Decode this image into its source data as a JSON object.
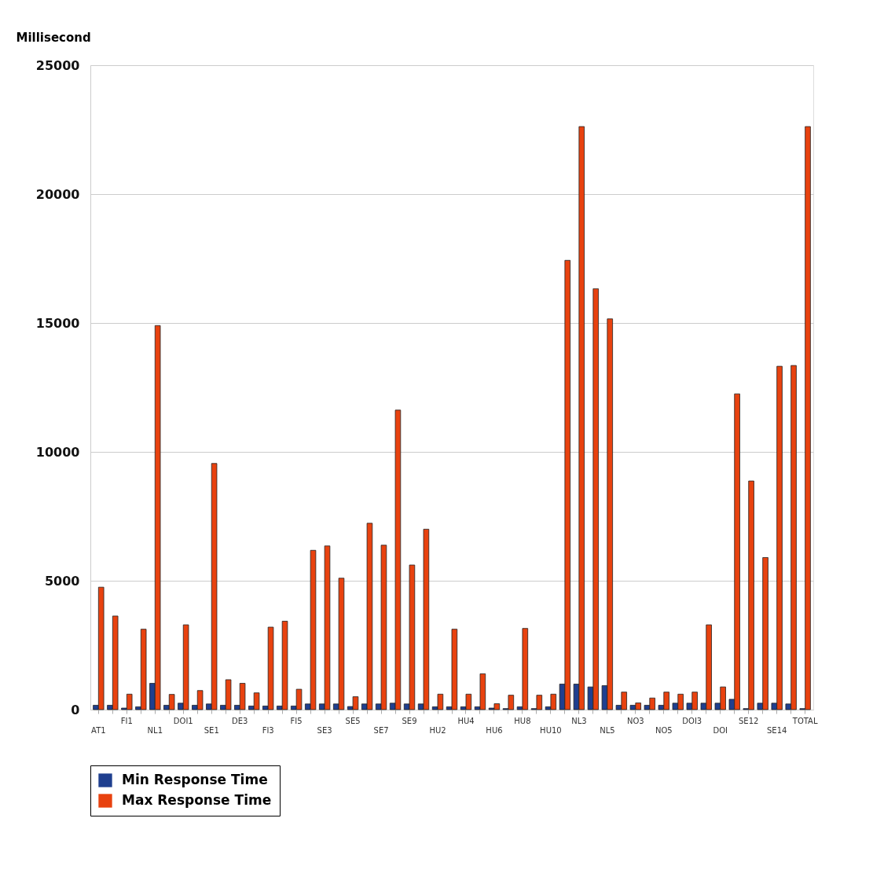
{
  "chart_data": {
    "type": "bar",
    "ylabel": "Millisecond",
    "categories": [
      "AT1",
      null,
      "FI1",
      null,
      "NL1",
      null,
      "DOI1",
      null,
      "SE1",
      null,
      "DE3",
      null,
      "FI3",
      null,
      "FI5",
      null,
      "SE3",
      null,
      "SE5",
      null,
      "SE7",
      null,
      "SE9",
      null,
      "HU2",
      null,
      "HU4",
      null,
      "HU6",
      null,
      "HU8",
      null,
      "HU10",
      null,
      "NL3",
      null,
      "NL5",
      null,
      "NO3",
      null,
      "NO5",
      null,
      "DOI3",
      null,
      "DOI",
      null,
      "SE12",
      null,
      "SE14",
      null,
      "TOTAL"
    ],
    "series": [
      {
        "name": "Min Response Time",
        "color": "#1f3f8f",
        "values": [
          170,
          170,
          60,
          110,
          1020,
          170,
          250,
          170,
          220,
          170,
          170,
          140,
          140,
          140,
          140,
          220,
          220,
          220,
          120,
          220,
          220,
          250,
          220,
          220,
          110,
          110,
          110,
          110,
          60,
          40,
          110,
          40,
          110,
          990,
          990,
          880,
          930,
          170,
          170,
          170,
          170,
          250,
          250,
          250,
          250,
          400,
          40,
          250,
          250,
          220,
          40
        ]
      },
      {
        "name": "Max Response Time",
        "color": "#e8420f",
        "values": [
          4750,
          3630,
          600,
          3120,
          14900,
          590,
          3290,
          740,
          9550,
          1160,
          1020,
          650,
          3200,
          3430,
          790,
          6180,
          6350,
          5100,
          500,
          7230,
          6380,
          11620,
          5610,
          7000,
          600,
          3120,
          600,
          1390,
          230,
          560,
          3150,
          560,
          600,
          17430,
          22620,
          16330,
          15160,
          680,
          260,
          450,
          680,
          600,
          680,
          3290,
          880,
          12250,
          8870,
          5900,
          13320,
          13350,
          22620
        ]
      }
    ],
    "ylim": [
      0,
      25000
    ],
    "yticks": [
      0,
      5000,
      10000,
      15000,
      20000,
      25000
    ],
    "grid": "y",
    "legend": "bottom"
  }
}
